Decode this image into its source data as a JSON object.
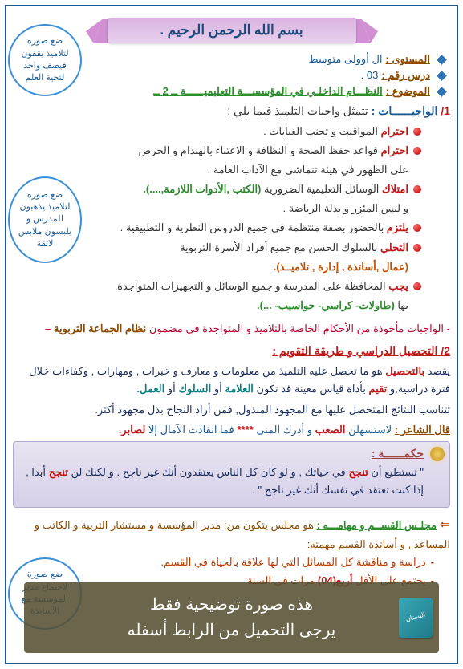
{
  "colors": {
    "border": "#1e5a91",
    "title_text": "#1a4a7a",
    "pink_ribbon": "#d190d4",
    "diamond_blue": "#2e74b5",
    "label_brown": "#8a4a00",
    "label_blue": "#1e5a91",
    "value_green": "#2e8b2e",
    "bold_red": "#c01818",
    "parenth_green": "#2e8b2e",
    "parenth_orange": "#c05000",
    "note_red": "#b8002c",
    "note_brown": "#8a4a00",
    "section2": "#c01818",
    "para_navy": "#1a2a5a",
    "teal": "#0a8080",
    "wisdom_title": "#a04848",
    "wisdom_navy": "#1a2a5a",
    "wisdom_red": "#c01818",
    "council_title": "#2e8b2e",
    "council_brown": "#8a4a00",
    "council_orange": "#b83a00",
    "poet_label": "#8a4a00",
    "poet_text": "#1e5a91"
  },
  "title": "بسم الله الرحمن الرحيم .",
  "meta": {
    "level_label": "المستوى :",
    "level_value": "ال أوولى متوسط",
    "lesson_label": "درس رقم :",
    "lesson_value": "03 .",
    "subject_label": "الموضوع :",
    "subject_value": "النظـــام الداخلـي في المؤسســـة التعليميــــــة ــ 2 ــ"
  },
  "section1": {
    "num": "1/",
    "heading": "الواجبــــــات :",
    "intro": " تتمثل واجبات التلميذ فيما يلي :",
    "items": [
      {
        "bold": "احترام",
        "rest": " المواقيت و تجنب الغيابات ."
      },
      {
        "bold": "احترام",
        "rest": " قواعد حفظ الصحة  و النظافة و الاعتناء بالهندام و الحرص"
      },
      {
        "bold": "",
        "rest": "على الظهور في هيئة تتماشى مع الآداب العامة ."
      },
      {
        "bold": "امتلاك",
        "rest": " الوسائل التعليمية الضرورية ",
        "paren": "(الكتب ,الأدوات اللازمة,....).",
        "paren_color": "#2e8b2e"
      },
      {
        "bold": "",
        "rest": "و لبس المئزر و بذلة الرياضة ."
      },
      {
        "bold": "يلتزم",
        "rest": " بالحضور بصفة منتظمة في جميع الدروس النظرية و التطبيقية ."
      },
      {
        "bold": "التحلي",
        "rest": " بالسلوك الحسن مع جميع أفراد الأسرة التربوية"
      },
      {
        "bold": "",
        "rest": "",
        "paren": "(عمال ,أساتذة , إدارة , تلاميــذ).",
        "paren_color": "#c05000",
        "pad": true
      },
      {
        "bold": "يجب",
        "rest": " المحافظة على المدرسة و جميع الوسائل و التجهيزات المتواجدة"
      },
      {
        "bold": "",
        "rest": "بها ",
        "paren": "(طاولات- كراسي- حواسيب- ...).",
        "paren_color": "#2e8b2e"
      }
    ],
    "note_pre": "- الواجبات مأخوذة من الأحكام الخاصة بالتلاميذ و المتواجدة في مضمون ",
    "note_bold": "نظام الجماعة التربوية",
    "note_end": " –"
  },
  "section2": {
    "num": "2/",
    "heading": "التحصيل الدراسي و طريقة التقويم :",
    "para1_a": "يقصد ",
    "para1_b": "بالتحصيل",
    "para1_c": " هو ما تحصل عليه التلميذ من معلومات و معارف و خبرات , ومهارات , وكفاءات خلال فترة دراسية,و ",
    "para1_d": "تقيم",
    "para1_e": " بأداة قياس معينة قد تكون ",
    "para1_f": "العلامة",
    "para1_g": " أو ",
    "para1_h": "السلوك",
    "para1_i": " أو ",
    "para1_j": "العمل.",
    "para2": "تتناسب النتائج المتحصل عليها مع المجهود المبذول, فمن أراد النجاح بذل مجهود أكثر.",
    "poet_label": "قال الشاعر :",
    "poet_a": "  لاستسهلن ",
    "poet_b": "الصعب",
    "poet_c": " و أدرك المنى   ",
    "poet_stars": "****",
    "poet_d": "   فما انقادت الآمال إلا ",
    "poet_e": "لصابر."
  },
  "wisdom": {
    "title": "حكمــــــة :",
    "q1": "\" تستطيع أن ",
    "q2": "تنجح",
    "q3": " في حياتك , و لو كان كل الناس يعتقدون أنك غير ناجح . و لكنك لن ",
    "q4": "تنجح",
    "q5": " أبدا , إذا كنت تعتقد في نفسك أنك غير ناجح \" ."
  },
  "council": {
    "arrow": "⇐",
    "title": "مجلـس القســم و مهامـــه :",
    "intro": " هو مجلس يتكون من: مدير المؤسسة و مستشار التربية و الكاتب و المساعد , و أساتذة القسم مهمته:",
    "item1": "دراسة و مناقشة كل المسائل التي لها علاقة بالحياة في القسم.",
    "item2_a": "يجتمع على الأقل ",
    "item2_b": "أربع(04)",
    "item2_c": " مرات في السنة"
  },
  "side_notes": {
    "n1": "ضع صورة لتلاميذ يقفون فيصف واحد لتحية العلم",
    "n2": "ضع صورة لتلاميذ يذهبون للمدرس و يلبسون ملابس لائقة",
    "n3": "ضع صورة لاجتماع مدير المؤسسة مع الأساتذة"
  },
  "overlay": {
    "line1": "هذه صورة توضيحية فقط",
    "line2": "يرجى التحميل من الرابط أسفله"
  }
}
